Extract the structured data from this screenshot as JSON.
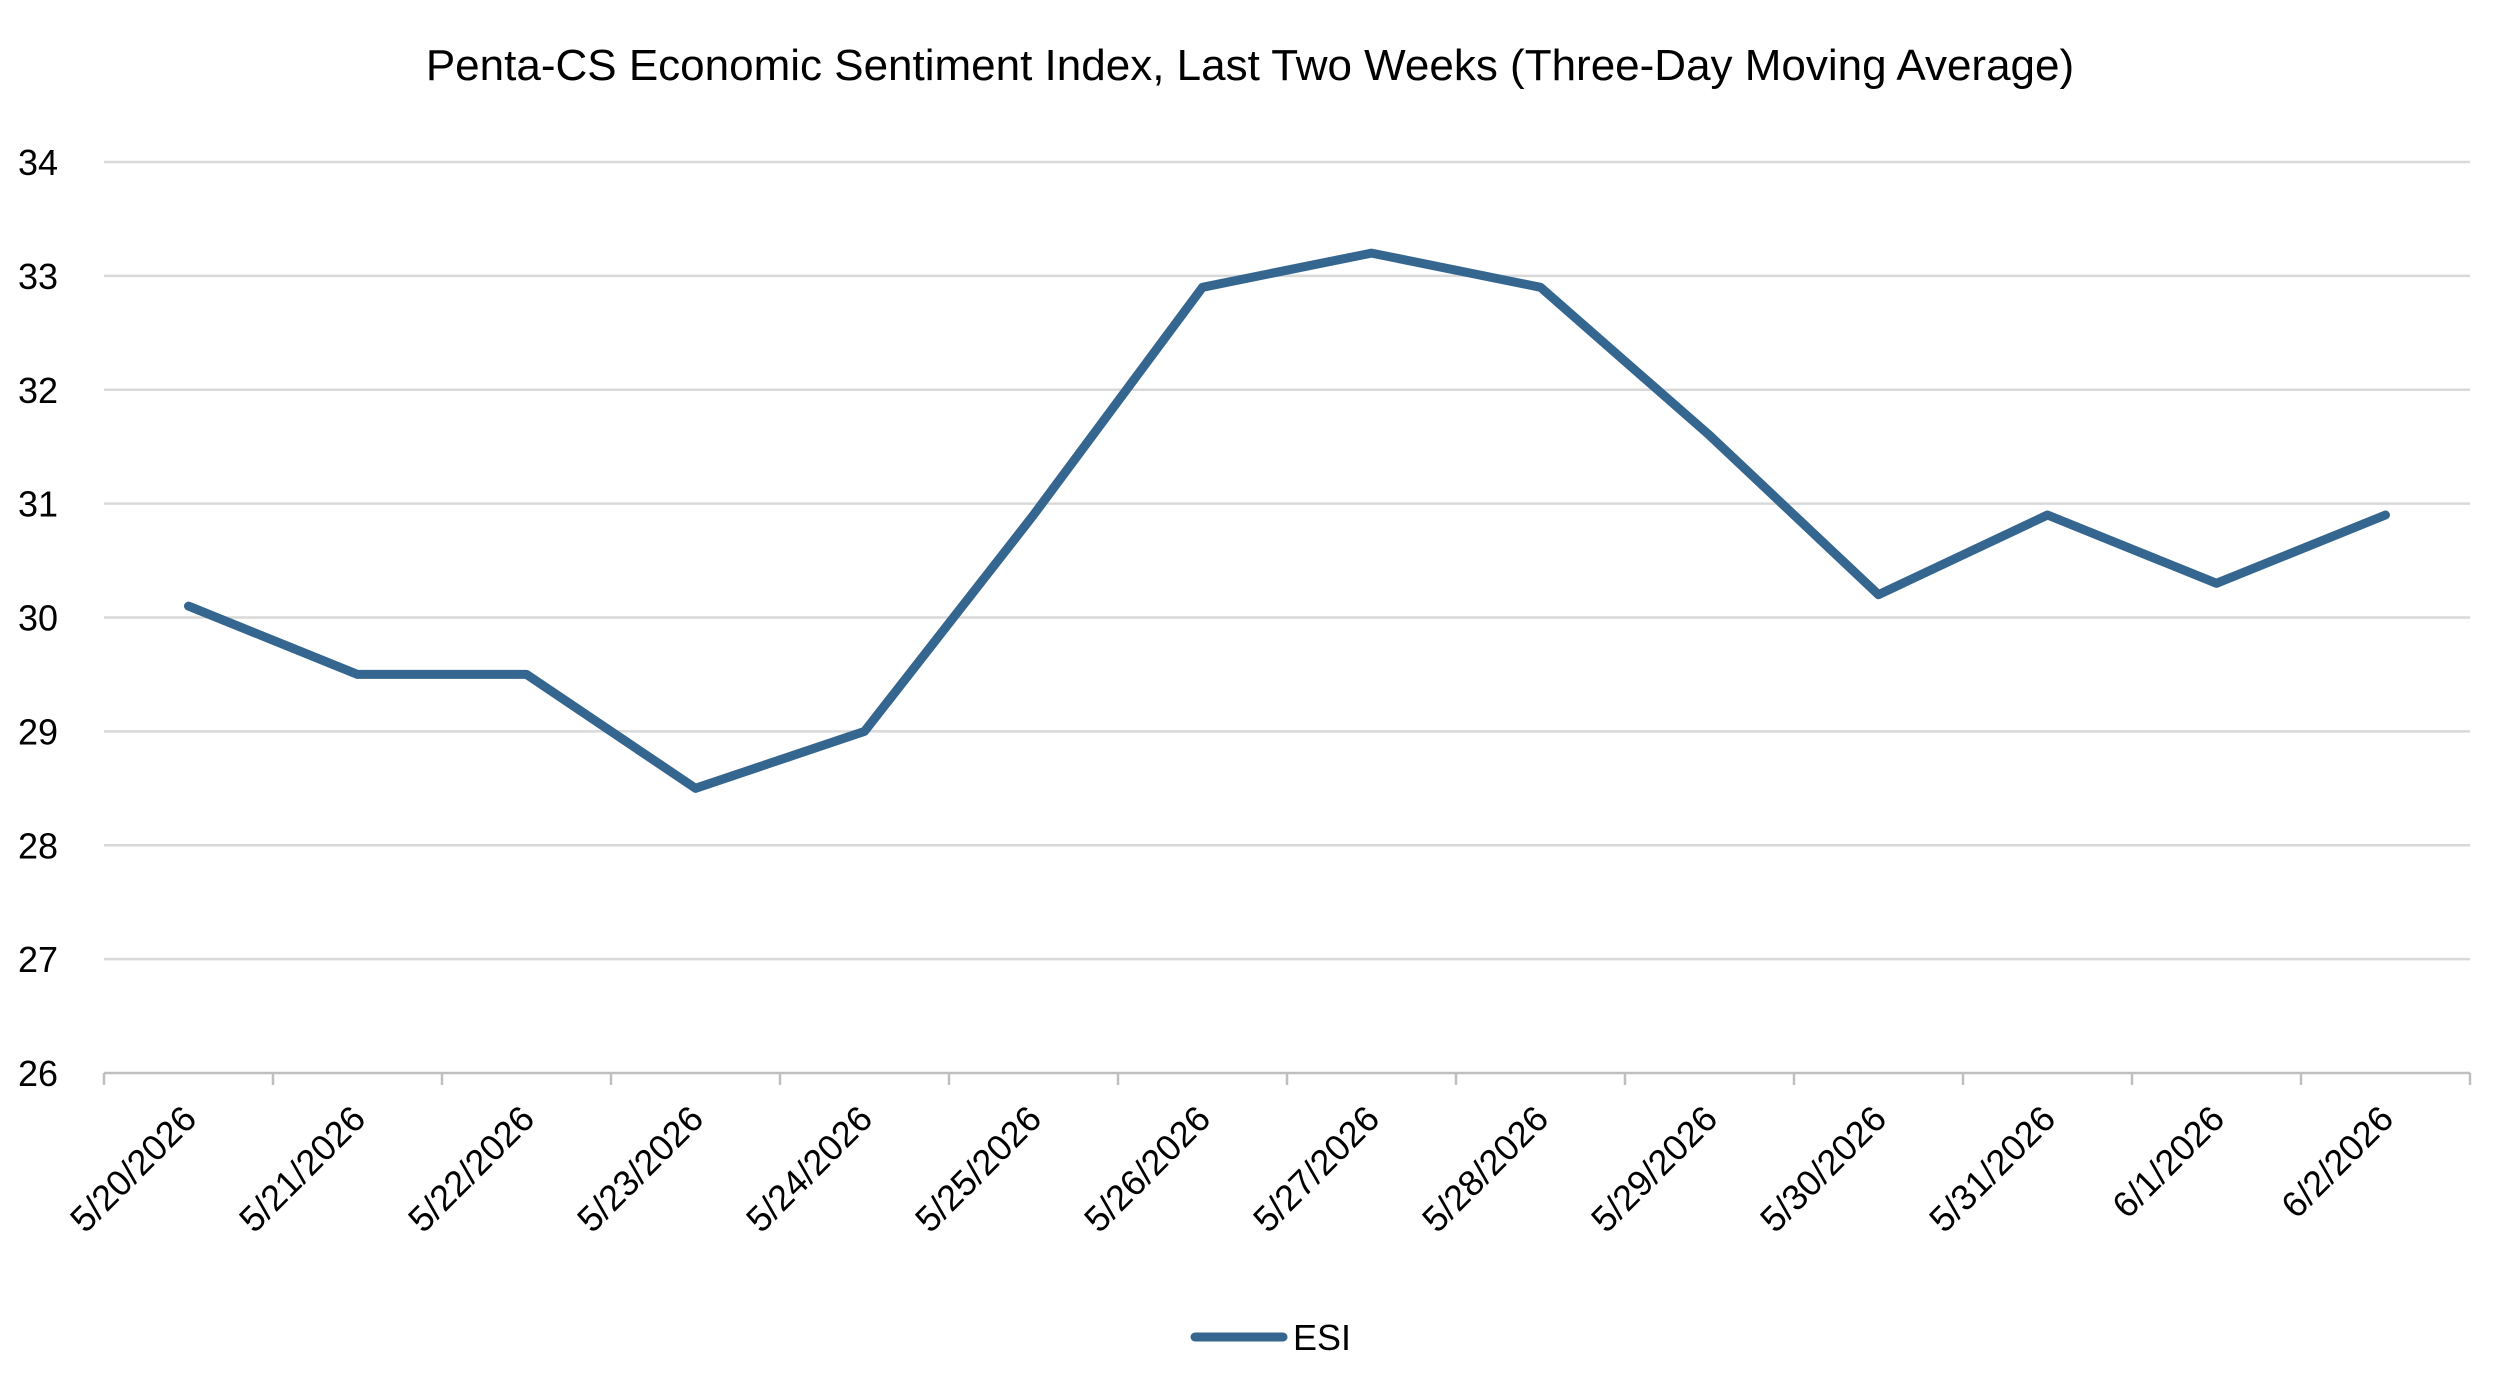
{
  "chart_data": {
    "type": "line",
    "title": "Penta-CS Economic Sentiment Index, Last Two Weeks (Three-Day Moving Average)",
    "categories": [
      "5/20/2026",
      "5/21/2026",
      "5/22/2026",
      "5/23/2026",
      "5/24/2026",
      "5/25/2026",
      "5/26/2026",
      "5/27/2026",
      "5/28/2026",
      "5/29/2026",
      "5/30/2026",
      "5/31/2026",
      "6/1/2026",
      "6/2/2026"
    ],
    "series": [
      {
        "name": "ESI",
        "values": [
          30.1,
          29.5,
          29.5,
          28.5,
          29.0,
          30.9,
          32.9,
          33.2,
          32.9,
          31.6,
          30.2,
          30.9,
          30.3,
          30.9
        ],
        "color": "#35668f"
      }
    ],
    "ylim": [
      26,
      34
    ],
    "yticks": [
      "26",
      "27",
      "28",
      "29",
      "30",
      "31",
      "32",
      "33",
      "34"
    ],
    "grid": "horizontal",
    "legend_position": "bottom-center",
    "gridline_color": "#d9d9d9",
    "axis_color": "#bfbfbf"
  }
}
